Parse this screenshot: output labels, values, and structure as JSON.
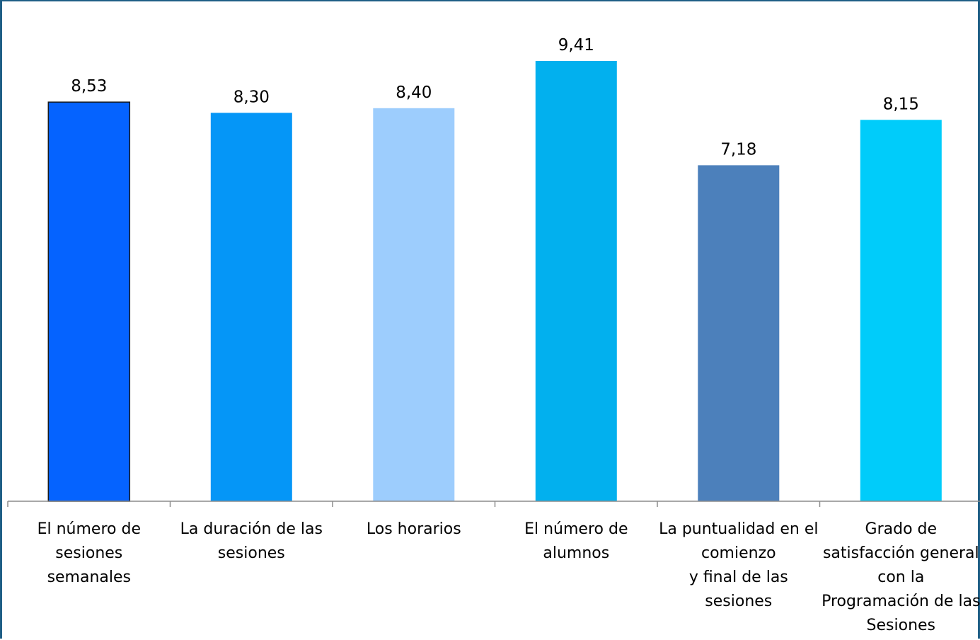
{
  "chart_data": {
    "type": "bar",
    "categories": [
      [
        "El número de",
        "sesiones",
        "semanales"
      ],
      [
        "La duración de las",
        "sesiones"
      ],
      [
        "Los horarios"
      ],
      [
        "El número de",
        "alumnos"
      ],
      [
        "La puntualidad en el",
        "comienzo",
        "y final de las",
        "sesiones"
      ],
      [
        "Grado de",
        "satisfacción general",
        "con la",
        "Programación de las",
        "Sesiones"
      ]
    ],
    "values": [
      8.53,
      8.3,
      8.4,
      9.41,
      7.18,
      8.15
    ],
    "value_labels": [
      "8,53",
      "8,30",
      "8,40",
      "9,41",
      "7,18",
      "8,15"
    ],
    "colors": [
      "#0563ff",
      "#0596f7",
      "#9dcdfd",
      "#02b0ee",
      "#4c80bb",
      "#00ccfa"
    ],
    "ylim": [
      0,
      10
    ],
    "grid": false,
    "legend": "none",
    "title": "",
    "xlabel": "",
    "ylabel": ""
  }
}
